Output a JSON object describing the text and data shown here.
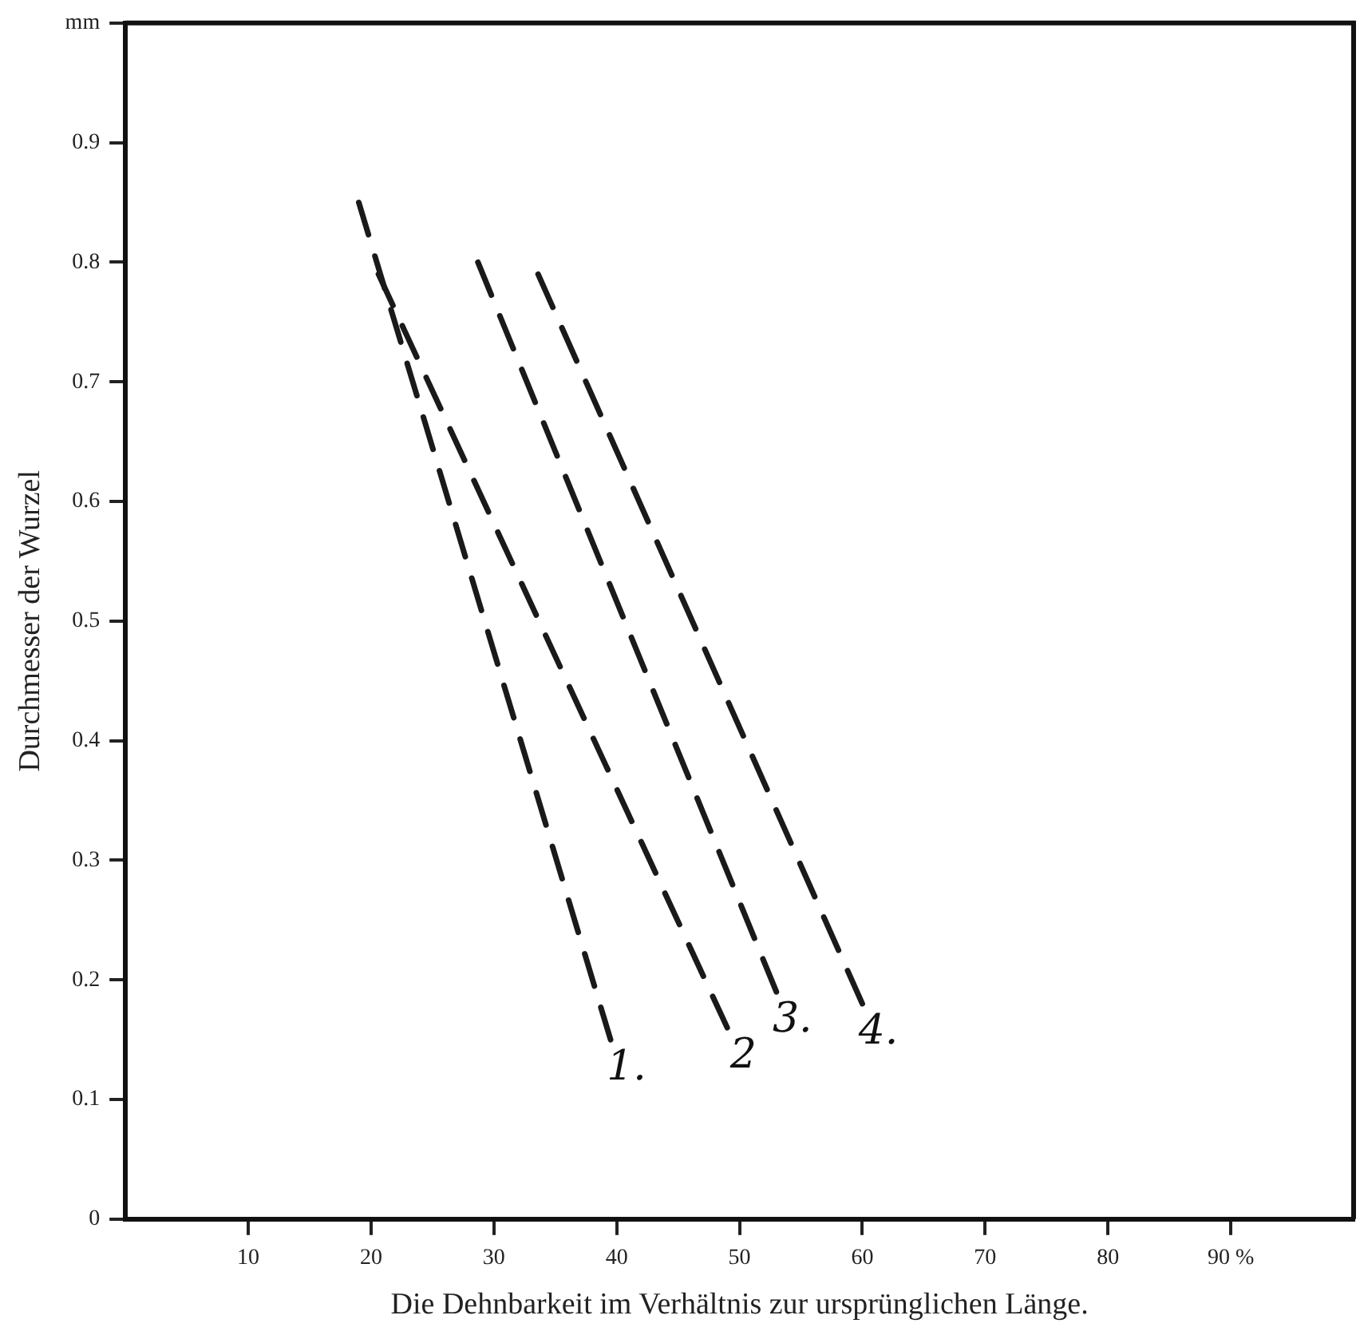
{
  "chart_data": {
    "type": "line",
    "xlabel": "Die Dehnbarkeit im Verhältnis zur ursprünglichen Länge.",
    "ylabel": "Durchmesser der Wurzel",
    "xlim": [
      0,
      100
    ],
    "xticks": [
      10,
      20,
      30,
      40,
      50,
      60,
      70,
      80,
      {
        "value": 90,
        "label": "90 %"
      }
    ],
    "ylim": [
      0,
      1.0
    ],
    "yticks": [
      0,
      0.1,
      0.2,
      0.3,
      0.4,
      0.5,
      0.6,
      0.7,
      0.8,
      0.9,
      {
        "value": 1.0,
        "label": "mm"
      }
    ],
    "grid": false,
    "legend": false,
    "marker": "none",
    "line_style": "dashed",
    "series": [
      {
        "name": "1.",
        "color": "#1a1a1a",
        "x": [
          19,
          39.5
        ],
        "values": [
          0.85,
          0.15
        ]
      },
      {
        "name": "2",
        "color": "#1a1a1a",
        "x": [
          20.6,
          49
        ],
        "values": [
          0.79,
          0.16
        ]
      },
      {
        "name": "3.",
        "color": "#1a1a1a",
        "x": [
          28.7,
          53
        ],
        "values": [
          0.8,
          0.19
        ]
      },
      {
        "name": "4.",
        "color": "#1a1a1a",
        "x": [
          33.6,
          60
        ],
        "values": [
          0.79,
          0.18
        ]
      }
    ]
  }
}
